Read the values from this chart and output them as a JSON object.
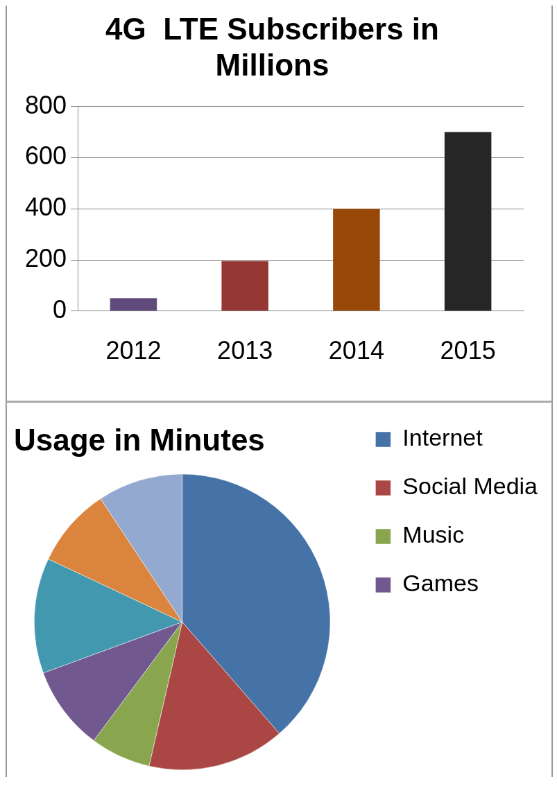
{
  "chart_data": [
    {
      "type": "bar",
      "title": "4G  LTE Subscribers in Millions",
      "categories": [
        "2012",
        "2013",
        "2014",
        "2015"
      ],
      "values": [
        50,
        195,
        400,
        700
      ],
      "colors": [
        "#604a7b",
        "#953735",
        "#984807",
        "#262626"
      ],
      "ylim": [
        0,
        800
      ],
      "yticks": [
        0,
        200,
        400,
        600,
        800
      ],
      "grid": "y",
      "legend": false
    },
    {
      "type": "pie",
      "title": "Usage in Minutes",
      "categories": [
        "Internet",
        "Social Media",
        "Music",
        "Games",
        null,
        null,
        null
      ],
      "values": [
        38.6,
        15,
        6.6,
        9.2,
        12.6,
        8.7,
        9.3
      ],
      "colors": [
        "#4572a7",
        "#aa4643",
        "#89a54e",
        "#71588f",
        "#4198af",
        "#db843d",
        "#93a9cf"
      ],
      "legend": "right"
    }
  ]
}
